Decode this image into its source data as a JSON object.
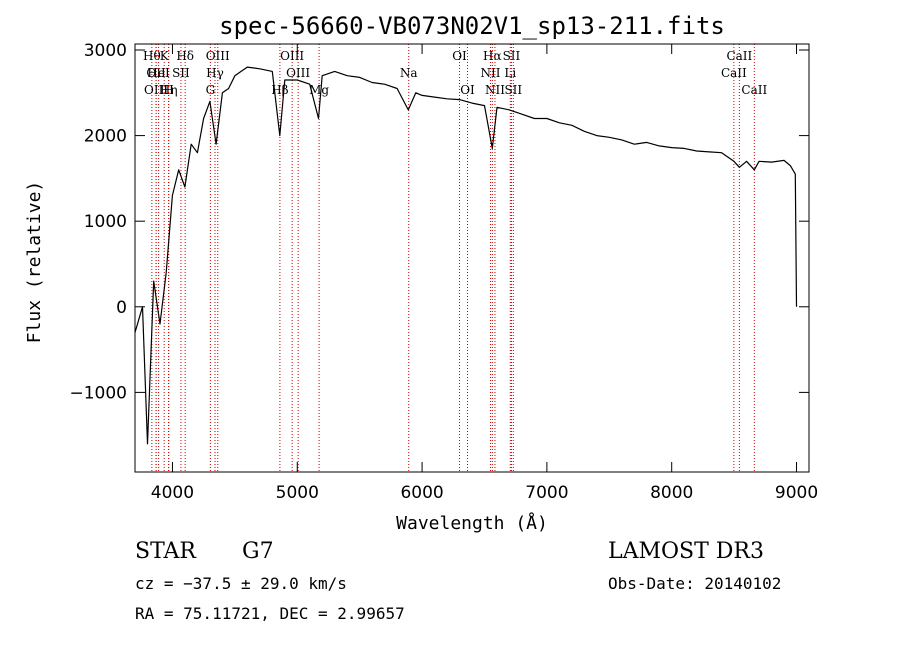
{
  "chart_data": {
    "type": "line",
    "title": "spec-56660-VB073N02V1_sp13-211.fits",
    "xlabel": "Wavelength (Å)",
    "ylabel": "Flux (relative)",
    "xlim": [
      3700,
      9100
    ],
    "ylim": [
      -1930,
      3070
    ],
    "x_ticks": [
      4000,
      5000,
      6000,
      7000,
      8000,
      9000
    ],
    "x_tick_labels": [
      "4000",
      "5000",
      "6000",
      "7000",
      "8000",
      "9000"
    ],
    "y_ticks": [
      -1000,
      0,
      1000,
      2000,
      3000
    ],
    "y_tick_labels": [
      "−1000",
      "0",
      "1000",
      "2000",
      "3000"
    ],
    "series": [
      {
        "name": "flux",
        "x": [
          3700,
          3760,
          3800,
          3850,
          3900,
          3950,
          4000,
          4050,
          4100,
          4150,
          4200,
          4250,
          4300,
          4350,
          4400,
          4450,
          4500,
          4550,
          4600,
          4700,
          4800,
          4860,
          4900,
          5000,
          5100,
          5170,
          5200,
          5300,
          5400,
          5500,
          5600,
          5700,
          5800,
          5890,
          5950,
          6000,
          6100,
          6200,
          6300,
          6400,
          6500,
          6563,
          6600,
          6700,
          6800,
          6900,
          7000,
          7100,
          7200,
          7300,
          7400,
          7500,
          7600,
          7700,
          7800,
          7900,
          8000,
          8100,
          8200,
          8300,
          8400,
          8498,
          8542,
          8600,
          8662,
          8700,
          8800,
          8900,
          8950,
          8990,
          9000
        ],
        "y": [
          -300,
          0,
          -1600,
          300,
          -200,
          400,
          1300,
          1600,
          1400,
          1900,
          1800,
          2200,
          2400,
          1900,
          2500,
          2550,
          2700,
          2750,
          2800,
          2780,
          2750,
          2000,
          2650,
          2650,
          2600,
          2200,
          2700,
          2750,
          2700,
          2680,
          2620,
          2600,
          2550,
          2300,
          2500,
          2470,
          2450,
          2430,
          2420,
          2380,
          2350,
          1850,
          2330,
          2300,
          2250,
          2200,
          2200,
          2150,
          2120,
          2050,
          2000,
          1980,
          1950,
          1900,
          1920,
          1880,
          1860,
          1850,
          1820,
          1810,
          1800,
          1700,
          1630,
          1700,
          1600,
          1700,
          1690,
          1710,
          1650,
          1550,
          0
        ]
      }
    ],
    "line_markers": [
      {
        "x": 3835,
        "label": "Hθ",
        "row": 0
      },
      {
        "x": 3869,
        "label": "OII",
        "row": 1
      },
      {
        "x": 3869,
        "label": "OIII",
        "row": 2
      },
      {
        "x": 3889,
        "label": "HeI",
        "row": 1
      },
      {
        "x": 3934,
        "label": "K",
        "row": 0
      },
      {
        "x": 3970,
        "label": "Hη",
        "row": 2
      },
      {
        "x": 3969,
        "label": "H",
        "row": 2
      },
      {
        "x": 4068,
        "label": "SII",
        "row": 1
      },
      {
        "x": 4102,
        "label": "Hδ",
        "row": 0
      },
      {
        "x": 4304,
        "label": "G",
        "row": 2
      },
      {
        "x": 4341,
        "label": "Hγ",
        "row": 1
      },
      {
        "x": 4363,
        "label": "OIII",
        "row": 0
      },
      {
        "x": 4861,
        "label": "Hβ",
        "row": 2
      },
      {
        "x": 4959,
        "label": "OIII",
        "row": 0
      },
      {
        "x": 5007,
        "label": "OIII",
        "row": 1
      },
      {
        "x": 5175,
        "label": "Mg",
        "row": 2
      },
      {
        "x": 5893,
        "label": "Na",
        "row": 1
      },
      {
        "x": 6300,
        "label": "OI",
        "row": 0
      },
      {
        "x": 6364,
        "label": "OI",
        "row": 2
      },
      {
        "x": 6548,
        "label": "NII",
        "row": 1
      },
      {
        "x": 6563,
        "label": "Hα",
        "row": 0
      },
      {
        "x": 6584,
        "label": "NII",
        "row": 2
      },
      {
        "x": 6707,
        "label": "Li",
        "row": 1
      },
      {
        "x": 6716,
        "label": "SII",
        "row": 0
      },
      {
        "x": 6731,
        "label": "SII",
        "row": 2
      },
      {
        "x": 8498,
        "label": "CaII",
        "row": 1
      },
      {
        "x": 8542,
        "label": "CaII",
        "row": 0
      },
      {
        "x": 8662,
        "label": "CaII",
        "row": 2
      }
    ]
  },
  "info": {
    "object_type": "STAR",
    "subclass": "G7",
    "survey": "LAMOST DR3",
    "cz": "cz = −37.5 ± 29.0 km/s",
    "obs_date": "Obs-Date: 20140102",
    "coords": "RA =  75.11721, DEC =   2.99657"
  },
  "colors": {
    "line": "#000000",
    "marker": "#cc0000",
    "axis": "#000000"
  }
}
